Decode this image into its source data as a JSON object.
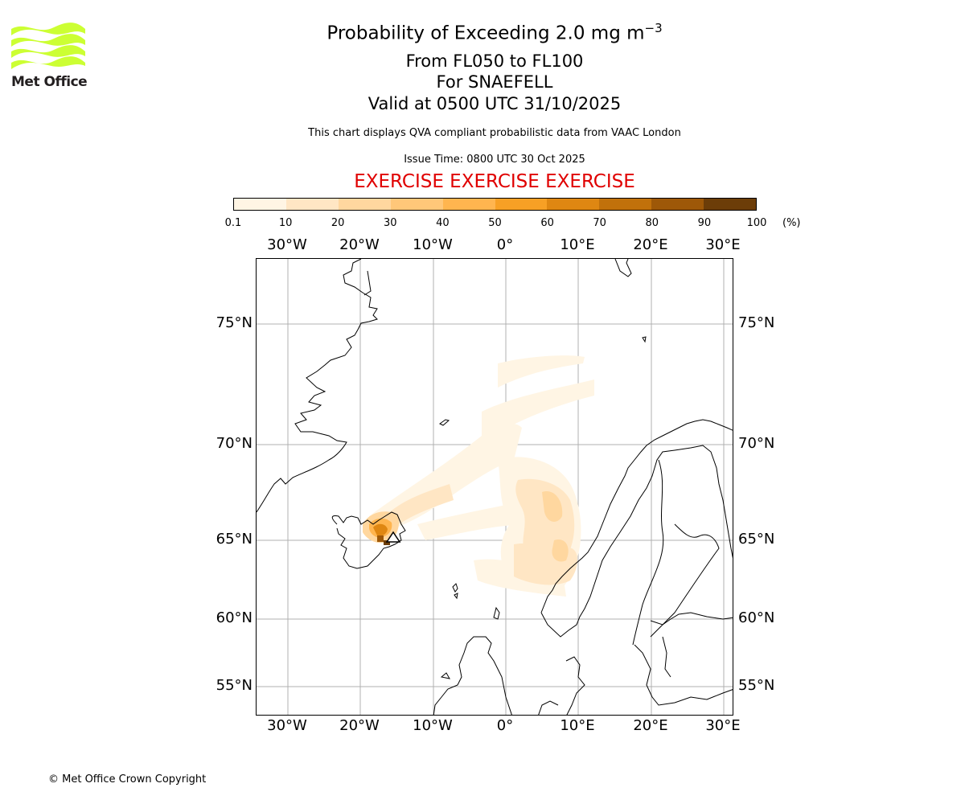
{
  "logo": {
    "text": "Met Office",
    "color": "#ccff33"
  },
  "header": {
    "title": "Probability of Exceeding 2.0 mg m",
    "title_sup": "−3",
    "level": "From FL050 to FL100",
    "volcano": "For SNAEFELL",
    "valid": "Valid at 0500 UTC 31/10/2025",
    "note": "This chart displays QVA compliant probabilistic data from VAAC London",
    "issue": "Issue Time: 0800 UTC 30 Oct 2025",
    "exercise": "EXERCISE EXERCISE EXERCISE",
    "exercise_color": "#e00000"
  },
  "colorbar": {
    "ticks": [
      "0.1",
      "10",
      "20",
      "30",
      "40",
      "50",
      "60",
      "70",
      "80",
      "90",
      "100"
    ],
    "unit": "(%)",
    "colors": [
      "#fff5e4",
      "#ffe6c4",
      "#ffd79f",
      "#ffc779",
      "#ffb54f",
      "#f7a025",
      "#df8712",
      "#c1710b",
      "#9e5808",
      "#6c3d08"
    ]
  },
  "axes": {
    "lon_labels": [
      "30°W",
      "20°W",
      "10°W",
      "0°",
      "10°E",
      "20°E",
      "30°E"
    ],
    "lat_labels": [
      "75°N",
      "70°N",
      "65°N",
      "60°N",
      "55°N"
    ]
  },
  "footer": {
    "copyright": "© Met Office Crown Copyright"
  }
}
